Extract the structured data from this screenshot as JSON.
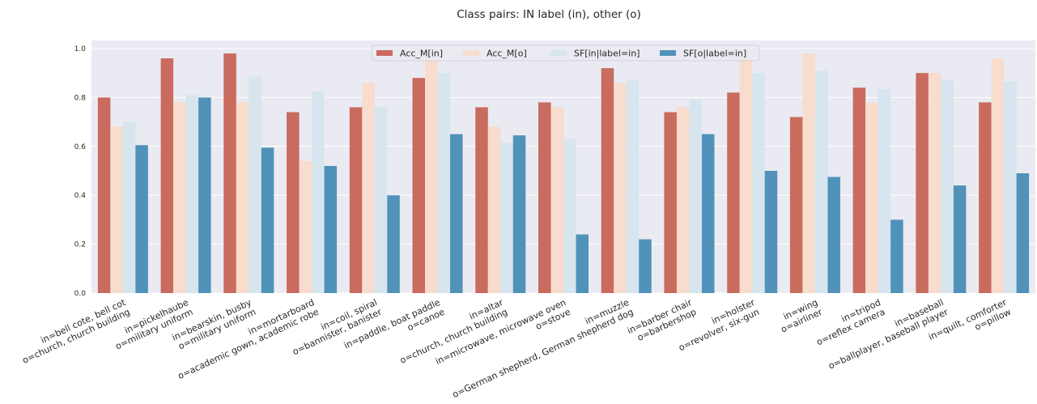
{
  "chart_data": {
    "type": "bar",
    "title": "Class pairs: IN label (in), other (o)",
    "xlabel": "",
    "ylabel": "",
    "ylim": [
      0,
      1.0
    ],
    "yticks": [
      "0.0",
      "0.2",
      "0.4",
      "0.6",
      "0.8",
      "1.0"
    ],
    "grid": true,
    "legend_position": "top-center",
    "categories": [
      [
        "in=bell cote, bell cot",
        "o=church, church building"
      ],
      [
        "in=pickelhaube",
        "o=military uniform"
      ],
      [
        "in=bearskin, busby",
        "o=military uniform"
      ],
      [
        "in=mortarboard",
        "o=academic gown, academic robe"
      ],
      [
        "in=coil, spiral",
        "o=bannister, banister"
      ],
      [
        "in=paddle, boat paddle",
        "o=canoe"
      ],
      [
        "in=altar",
        "o=church, church building"
      ],
      [
        "in=microwave, microwave oven",
        "o=stove"
      ],
      [
        "in=muzzle",
        "o=German shepherd, German shepherd dog"
      ],
      [
        "in=barber chair",
        "o=barbershop"
      ],
      [
        "in=holster",
        "o=revolver, six-gun"
      ],
      [
        "in=wing",
        "o=airliner"
      ],
      [
        "in=tripod",
        "o=reflex camera"
      ],
      [
        "in=baseball",
        "o=ballplayer, baseball player"
      ],
      [
        "in=quilt, comforter",
        "o=pillow"
      ]
    ],
    "series": [
      {
        "name": "Acc_M[in]",
        "color": "#c96b5e",
        "values": [
          0.8,
          0.96,
          0.98,
          0.74,
          0.76,
          0.88,
          0.76,
          0.78,
          0.92,
          0.74,
          0.82,
          0.72,
          0.84,
          0.9,
          0.78
        ]
      },
      {
        "name": "Acc_M[o]",
        "color": "#f8dccd",
        "values": [
          0.68,
          0.78,
          0.78,
          0.54,
          0.86,
          0.96,
          0.68,
          0.76,
          0.86,
          0.76,
          0.96,
          0.98,
          0.78,
          0.9,
          0.96
        ]
      },
      {
        "name": "SF[in|label=in]",
        "color": "#d6e5ee",
        "values": [
          0.7,
          0.81,
          0.885,
          0.825,
          0.76,
          0.9,
          0.615,
          0.63,
          0.87,
          0.79,
          0.9,
          0.91,
          0.835,
          0.87,
          0.865
        ]
      },
      {
        "name": "SF[o|label=in]",
        "color": "#5092b9",
        "values": [
          0.605,
          0.8,
          0.595,
          0.52,
          0.4,
          0.65,
          0.645,
          0.24,
          0.22,
          0.65,
          0.5,
          0.475,
          0.3,
          0.44,
          0.49
        ]
      }
    ]
  }
}
